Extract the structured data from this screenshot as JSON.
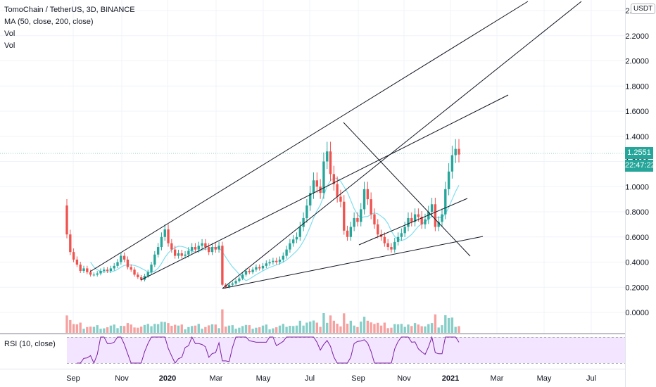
{
  "header": {
    "symbol_line": "TomoChain / TetherUS, 3D, BINANCE",
    "ma_line": "MA (50, close, 200, close)",
    "vol1": "Vol",
    "vol2": "Vol"
  },
  "currency_badge": "USDT",
  "last_price_tag": "1.2551",
  "countdown_tag": "22:47:22",
  "rsi_label": "RSI (10, close)",
  "colors": {
    "up": "#26a69a",
    "down": "#ef5350",
    "ma": "#7fdeef",
    "rsi": "#7b1fa2",
    "rsi_bg": "#f3e5ff",
    "trendline": "#131722"
  },
  "chart_data": {
    "type": "candlestick",
    "y_ticks": [
      "2.4000",
      "2.2000",
      "2.0000",
      "1.8000",
      "1.6000",
      "1.4000",
      "1.2000",
      "1.0000",
      "0.8000",
      "0.6000",
      "0.4000",
      "0.2000",
      "0.0000"
    ],
    "x_ticks": [
      "Sep",
      "Nov",
      "2020",
      "Mar",
      "May",
      "Jul",
      "Sep",
      "Nov",
      "2021",
      "Mar",
      "May",
      "Jul"
    ],
    "last_price": 1.2551,
    "closes": [
      0.62,
      0.48,
      0.42,
      0.38,
      0.33,
      0.35,
      0.32,
      0.3,
      0.3,
      0.31,
      0.33,
      0.34,
      0.33,
      0.35,
      0.37,
      0.4,
      0.45,
      0.42,
      0.36,
      0.34,
      0.3,
      0.28,
      0.26,
      0.29,
      0.32,
      0.38,
      0.46,
      0.52,
      0.6,
      0.66,
      0.55,
      0.5,
      0.45,
      0.47,
      0.45,
      0.46,
      0.49,
      0.52,
      0.5,
      0.53,
      0.55,
      0.52,
      0.48,
      0.52,
      0.5,
      0.53,
      0.22,
      0.2,
      0.22,
      0.23,
      0.25,
      0.27,
      0.3,
      0.33,
      0.32,
      0.34,
      0.36,
      0.35,
      0.37,
      0.39,
      0.4,
      0.41,
      0.4,
      0.42,
      0.45,
      0.5,
      0.55,
      0.58,
      0.6,
      0.68,
      0.75,
      0.85,
      0.95,
      1.05,
      1.0,
      0.95,
      1.2,
      1.28,
      1.1,
      1.02,
      0.92,
      0.88,
      0.65,
      0.6,
      0.68,
      0.75,
      0.72,
      0.82,
      0.98,
      0.9,
      0.78,
      0.7,
      0.62,
      0.6,
      0.55,
      0.52,
      0.5,
      0.56,
      0.6,
      0.63,
      0.68,
      0.75,
      0.72,
      0.78,
      0.76,
      0.7,
      0.74,
      0.8,
      0.86,
      0.68,
      0.72,
      0.78,
      0.98,
      1.12,
      1.25,
      1.3,
      1.2551
    ]
  }
}
